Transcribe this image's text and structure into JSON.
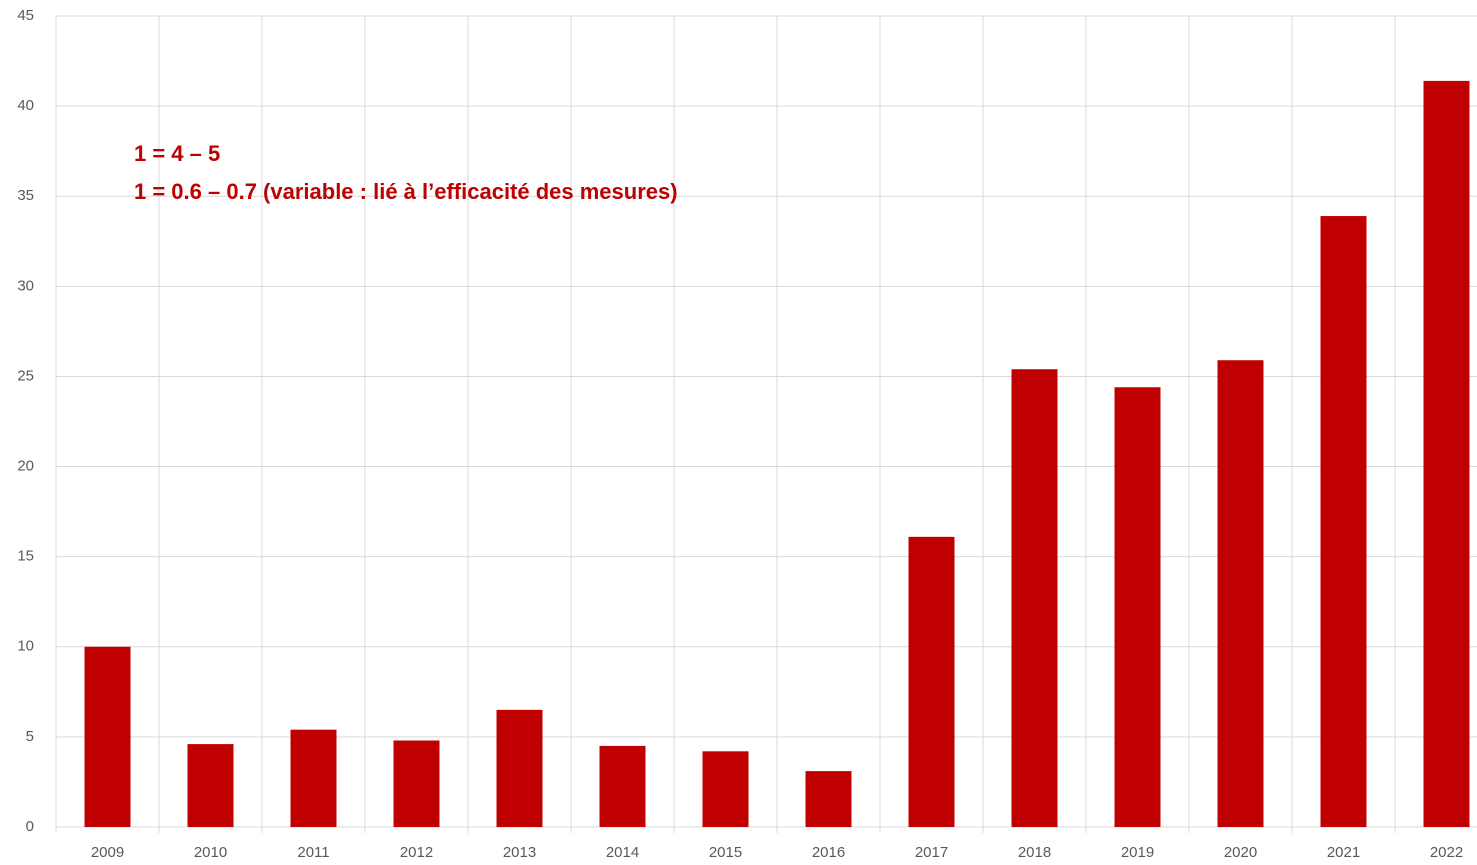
{
  "chart_data": {
    "type": "bar",
    "annotations": [
      "1 = 4 – 5",
      "1 = 0.6 – 0.7 (variable : lié à l’efficacité des mesures)"
    ],
    "categories": [
      "2009",
      "2010",
      "2011",
      "2012",
      "2013",
      "2014",
      "2015",
      "2016",
      "2017",
      "2018",
      "2019",
      "2020",
      "2021",
      "2022"
    ],
    "values": [
      10.0,
      4.6,
      5.4,
      4.8,
      6.5,
      4.5,
      4.2,
      3.1,
      16.1,
      25.4,
      24.4,
      25.9,
      33.9,
      41.4
    ],
    "color": "#c00000",
    "ylim": [
      0,
      45
    ],
    "yticks": [
      0,
      5,
      10,
      15,
      20,
      25,
      30,
      35,
      40,
      45
    ],
    "grid": true
  }
}
